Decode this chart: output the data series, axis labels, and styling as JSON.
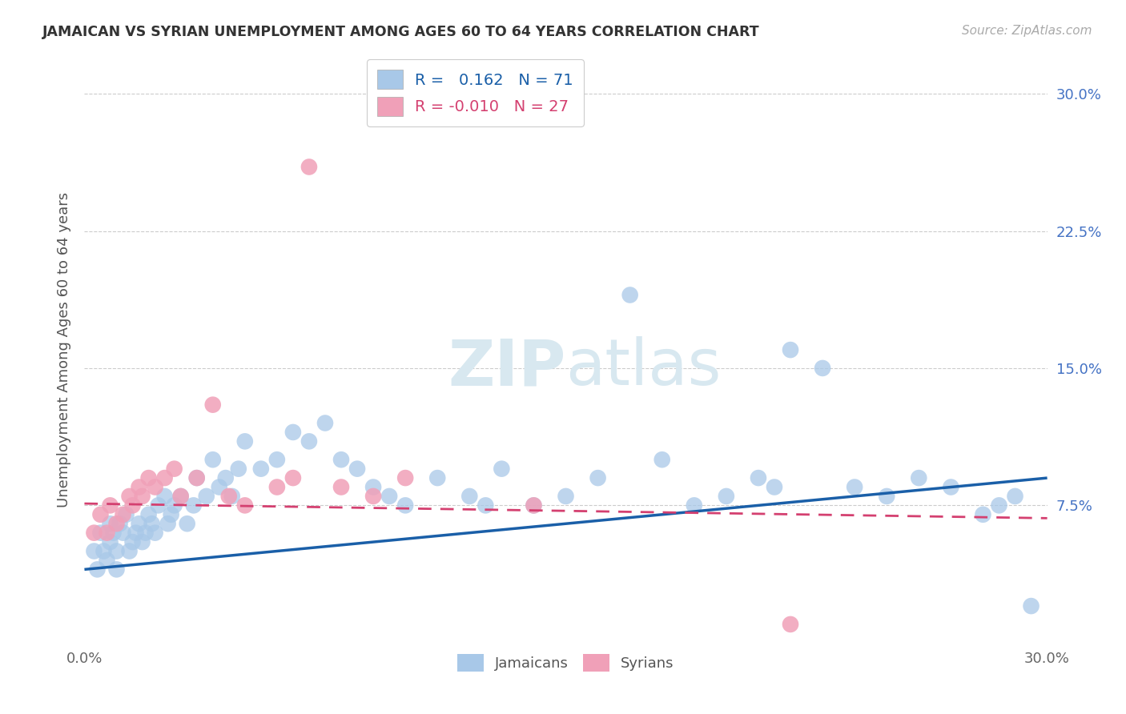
{
  "title": "JAMAICAN VS SYRIAN UNEMPLOYMENT AMONG AGES 60 TO 64 YEARS CORRELATION CHART",
  "source": "Source: ZipAtlas.com",
  "ylabel": "Unemployment Among Ages 60 to 64 years",
  "xlim": [
    0.0,
    0.3
  ],
  "ylim": [
    0.0,
    0.32
  ],
  "blue_color": "#a8c8e8",
  "pink_color": "#f0a0b8",
  "blue_line_color": "#1a5fa8",
  "pink_line_color": "#d44070",
  "legend_R_blue": "0.162",
  "legend_N_blue": "71",
  "legend_R_pink": "-0.010",
  "legend_N_pink": "27",
  "watermark_zip": "ZIP",
  "watermark_atlas": "atlas",
  "background_color": "#ffffff",
  "grid_color": "#cccccc",
  "right_axis_color": "#4472c4",
  "grid_yticks": [
    0.075,
    0.15,
    0.225,
    0.3
  ],
  "grid_ytick_labels": [
    "7.5%",
    "15.0%",
    "22.5%",
    "30.0%"
  ],
  "blue_line_x0": 0.0,
  "blue_line_y0": 0.04,
  "blue_line_x1": 0.3,
  "blue_line_y1": 0.09,
  "pink_line_x0": 0.0,
  "pink_line_y0": 0.076,
  "pink_line_x1": 0.3,
  "pink_line_y1": 0.068,
  "blue_x": [
    0.003,
    0.004,
    0.005,
    0.006,
    0.007,
    0.008,
    0.008,
    0.009,
    0.01,
    0.01,
    0.011,
    0.012,
    0.013,
    0.014,
    0.015,
    0.016,
    0.017,
    0.018,
    0.019,
    0.02,
    0.021,
    0.022,
    0.023,
    0.025,
    0.026,
    0.027,
    0.028,
    0.03,
    0.032,
    0.034,
    0.035,
    0.038,
    0.04,
    0.042,
    0.044,
    0.046,
    0.048,
    0.05,
    0.055,
    0.06,
    0.065,
    0.07,
    0.075,
    0.08,
    0.085,
    0.09,
    0.095,
    0.1,
    0.11,
    0.12,
    0.125,
    0.13,
    0.14,
    0.15,
    0.16,
    0.17,
    0.18,
    0.19,
    0.2,
    0.21,
    0.215,
    0.22,
    0.23,
    0.24,
    0.25,
    0.26,
    0.27,
    0.28,
    0.285,
    0.29,
    0.295
  ],
  "blue_y": [
    0.05,
    0.04,
    0.06,
    0.05,
    0.045,
    0.055,
    0.065,
    0.06,
    0.05,
    0.04,
    0.065,
    0.06,
    0.07,
    0.05,
    0.055,
    0.06,
    0.065,
    0.055,
    0.06,
    0.07,
    0.065,
    0.06,
    0.075,
    0.08,
    0.065,
    0.07,
    0.075,
    0.08,
    0.065,
    0.075,
    0.09,
    0.08,
    0.1,
    0.085,
    0.09,
    0.08,
    0.095,
    0.11,
    0.095,
    0.1,
    0.115,
    0.11,
    0.12,
    0.1,
    0.095,
    0.085,
    0.08,
    0.075,
    0.09,
    0.08,
    0.075,
    0.095,
    0.075,
    0.08,
    0.09,
    0.19,
    0.1,
    0.075,
    0.08,
    0.09,
    0.085,
    0.16,
    0.15,
    0.085,
    0.08,
    0.09,
    0.085,
    0.07,
    0.075,
    0.08,
    0.02
  ],
  "pink_x": [
    0.003,
    0.005,
    0.007,
    0.008,
    0.01,
    0.012,
    0.014,
    0.015,
    0.017,
    0.018,
    0.02,
    0.022,
    0.025,
    0.028,
    0.03,
    0.035,
    0.04,
    0.045,
    0.05,
    0.06,
    0.065,
    0.07,
    0.08,
    0.09,
    0.1,
    0.14,
    0.22
  ],
  "pink_y": [
    0.06,
    0.07,
    0.06,
    0.075,
    0.065,
    0.07,
    0.08,
    0.075,
    0.085,
    0.08,
    0.09,
    0.085,
    0.09,
    0.095,
    0.08,
    0.09,
    0.13,
    0.08,
    0.075,
    0.085,
    0.09,
    0.26,
    0.085,
    0.08,
    0.09,
    0.075,
    0.01
  ]
}
